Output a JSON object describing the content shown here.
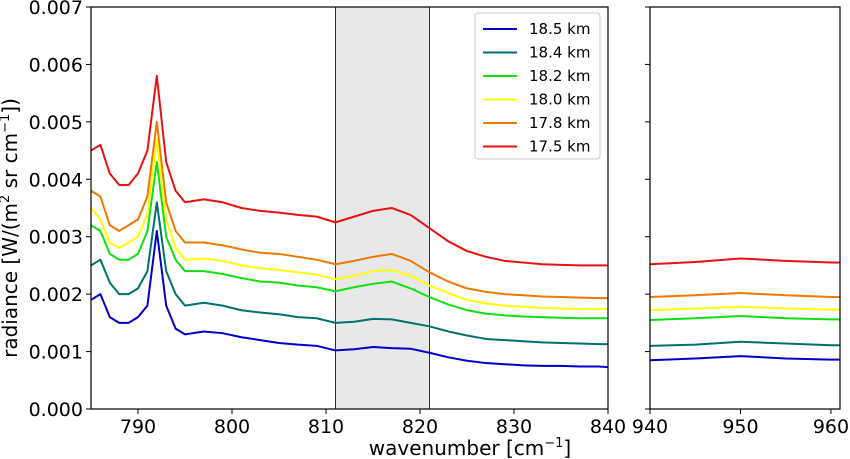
{
  "chart_data": {
    "type": "line",
    "xlabel": "wavenumber [cm",
    "xlabel_sup": "−1",
    "xlabel_end": "]",
    "ylabel": "radiance [W/(m",
    "ylabel_sup1": "2",
    "ylabel_mid": " sr cm",
    "ylabel_sup2": "−1",
    "ylabel_end": "])",
    "ylim": [
      0,
      0.007
    ],
    "yticks": [
      "0.000",
      "0.001",
      "0.002",
      "0.003",
      "0.004",
      "0.005",
      "0.006",
      "0.007"
    ],
    "panels": [
      {
        "xlim": [
          785,
          840
        ],
        "xticks": [
          "790",
          "800",
          "810",
          "820",
          "830",
          "840"
        ],
        "ytick_labels_shown": true
      },
      {
        "xlim": [
          940,
          961
        ],
        "xticks": [
          "940",
          "950",
          "960"
        ],
        "ytick_labels_shown": false
      }
    ],
    "shaded_region": {
      "x0": 811,
      "x1": 821,
      "color": "#e8e8e8"
    },
    "legend": {
      "placement": "top-right of left panel"
    },
    "grid": false,
    "series": [
      {
        "name": "18.5 km",
        "color": "#0000c8",
        "offset": 0.0,
        "left": [
          [
            785,
            0.0019
          ],
          [
            786,
            0.002
          ],
          [
            787,
            0.0016
          ],
          [
            788,
            0.0015
          ],
          [
            789,
            0.0015
          ],
          [
            790,
            0.0016
          ],
          [
            791,
            0.0018
          ],
          [
            792,
            0.0031
          ],
          [
            793,
            0.0018
          ],
          [
            794,
            0.0014
          ],
          [
            795,
            0.0013
          ],
          [
            797,
            0.00135
          ],
          [
            799,
            0.00132
          ],
          [
            801,
            0.00125
          ],
          [
            803,
            0.0012
          ],
          [
            805,
            0.00115
          ],
          [
            807,
            0.00112
          ],
          [
            809,
            0.0011
          ],
          [
            811,
            0.00102
          ],
          [
            813,
            0.00104
          ],
          [
            815,
            0.00108
          ],
          [
            817,
            0.00106
          ],
          [
            819,
            0.00105
          ],
          [
            821,
            0.00098
          ],
          [
            823,
            0.0009
          ],
          [
            825,
            0.00084
          ],
          [
            827,
            0.0008
          ],
          [
            829,
            0.00078
          ],
          [
            831,
            0.00076
          ],
          [
            833,
            0.00075
          ],
          [
            835,
            0.00075
          ],
          [
            837,
            0.00074
          ],
          [
            839,
            0.00074
          ],
          [
            840,
            0.00073
          ]
        ],
        "right": [
          [
            940,
            0.00085
          ],
          [
            945,
            0.00088
          ],
          [
            950,
            0.00092
          ],
          [
            955,
            0.00088
          ],
          [
            960,
            0.00086
          ],
          [
            961,
            0.00086
          ]
        ]
      },
      {
        "name": "18.4 km",
        "color": "#007070",
        "offset": 0.0,
        "left": [
          [
            785,
            0.0025
          ],
          [
            786,
            0.0026
          ],
          [
            787,
            0.0022
          ],
          [
            788,
            0.002
          ],
          [
            789,
            0.002
          ],
          [
            790,
            0.0021
          ],
          [
            791,
            0.0024
          ],
          [
            792,
            0.0036
          ],
          [
            793,
            0.0024
          ],
          [
            794,
            0.002
          ],
          [
            795,
            0.0018
          ],
          [
            797,
            0.00185
          ],
          [
            799,
            0.0018
          ],
          [
            801,
            0.00172
          ],
          [
            803,
            0.00168
          ],
          [
            805,
            0.00165
          ],
          [
            807,
            0.0016
          ],
          [
            809,
            0.00158
          ],
          [
            811,
            0.0015
          ],
          [
            813,
            0.00152
          ],
          [
            815,
            0.00157
          ],
          [
            817,
            0.00156
          ],
          [
            819,
            0.0015
          ],
          [
            821,
            0.00144
          ],
          [
            823,
            0.00135
          ],
          [
            825,
            0.00128
          ],
          [
            827,
            0.00122
          ],
          [
            829,
            0.0012
          ],
          [
            831,
            0.00118
          ],
          [
            833,
            0.00116
          ],
          [
            835,
            0.00115
          ],
          [
            837,
            0.00114
          ],
          [
            839,
            0.00113
          ],
          [
            840,
            0.00113
          ]
        ],
        "right": [
          [
            940,
            0.0011
          ],
          [
            945,
            0.00112
          ],
          [
            950,
            0.00117
          ],
          [
            955,
            0.00114
          ],
          [
            960,
            0.00111
          ],
          [
            961,
            0.00111
          ]
        ]
      },
      {
        "name": "18.2 km",
        "color": "#10e010",
        "offset": 0.0,
        "left": [
          [
            785,
            0.0032
          ],
          [
            786,
            0.0031
          ],
          [
            787,
            0.0027
          ],
          [
            788,
            0.0026
          ],
          [
            789,
            0.0026
          ],
          [
            790,
            0.0027
          ],
          [
            791,
            0.0031
          ],
          [
            792,
            0.0043
          ],
          [
            793,
            0.003
          ],
          [
            794,
            0.0026
          ],
          [
            795,
            0.0024
          ],
          [
            797,
            0.0024
          ],
          [
            799,
            0.00235
          ],
          [
            801,
            0.00228
          ],
          [
            803,
            0.00222
          ],
          [
            805,
            0.0022
          ],
          [
            807,
            0.00215
          ],
          [
            809,
            0.00212
          ],
          [
            811,
            0.00205
          ],
          [
            813,
            0.00212
          ],
          [
            815,
            0.00218
          ],
          [
            817,
            0.00222
          ],
          [
            819,
            0.0021
          ],
          [
            821,
            0.00195
          ],
          [
            823,
            0.00182
          ],
          [
            825,
            0.00172
          ],
          [
            827,
            0.00166
          ],
          [
            829,
            0.00163
          ],
          [
            831,
            0.00161
          ],
          [
            833,
            0.0016
          ],
          [
            835,
            0.00159
          ],
          [
            837,
            0.00158
          ],
          [
            839,
            0.00158
          ],
          [
            840,
            0.00158
          ]
        ],
        "right": [
          [
            940,
            0.00155
          ],
          [
            945,
            0.00158
          ],
          [
            950,
            0.00162
          ],
          [
            955,
            0.00158
          ],
          [
            960,
            0.00156
          ],
          [
            961,
            0.00156
          ]
        ]
      },
      {
        "name": "18.0 km",
        "color": "#ffff00",
        "offset": 0.0,
        "left": [
          [
            785,
            0.0035
          ],
          [
            786,
            0.0033
          ],
          [
            787,
            0.0029
          ],
          [
            788,
            0.0028
          ],
          [
            789,
            0.0029
          ],
          [
            790,
            0.003
          ],
          [
            791,
            0.0034
          ],
          [
            792,
            0.0047
          ],
          [
            793,
            0.0033
          ],
          [
            794,
            0.0028
          ],
          [
            795,
            0.0026
          ],
          [
            797,
            0.00262
          ],
          [
            799,
            0.00258
          ],
          [
            801,
            0.0025
          ],
          [
            803,
            0.00245
          ],
          [
            805,
            0.00242
          ],
          [
            807,
            0.00238
          ],
          [
            809,
            0.00234
          ],
          [
            811,
            0.00226
          ],
          [
            813,
            0.00232
          ],
          [
            815,
            0.0024
          ],
          [
            817,
            0.00242
          ],
          [
            819,
            0.00232
          ],
          [
            821,
            0.00215
          ],
          [
            823,
            0.00202
          ],
          [
            825,
            0.0019
          ],
          [
            827,
            0.00184
          ],
          [
            829,
            0.0018
          ],
          [
            831,
            0.00178
          ],
          [
            833,
            0.00176
          ],
          [
            835,
            0.00175
          ],
          [
            837,
            0.00174
          ],
          [
            839,
            0.00174
          ],
          [
            840,
            0.00174
          ]
        ],
        "right": [
          [
            940,
            0.00172
          ],
          [
            945,
            0.00175
          ],
          [
            950,
            0.00178
          ],
          [
            955,
            0.00175
          ],
          [
            960,
            0.00173
          ],
          [
            961,
            0.00173
          ]
        ]
      },
      {
        "name": "17.8 km",
        "color": "#f07800",
        "offset": 0.0,
        "left": [
          [
            785,
            0.0038
          ],
          [
            786,
            0.0037
          ],
          [
            787,
            0.0032
          ],
          [
            788,
            0.0031
          ],
          [
            789,
            0.0032
          ],
          [
            790,
            0.0033
          ],
          [
            791,
            0.0037
          ],
          [
            792,
            0.005
          ],
          [
            793,
            0.0036
          ],
          [
            794,
            0.0031
          ],
          [
            795,
            0.0029
          ],
          [
            797,
            0.0029
          ],
          [
            799,
            0.00285
          ],
          [
            801,
            0.00278
          ],
          [
            803,
            0.00272
          ],
          [
            805,
            0.0027
          ],
          [
            807,
            0.00265
          ],
          [
            809,
            0.0026
          ],
          [
            811,
            0.00252
          ],
          [
            813,
            0.00258
          ],
          [
            815,
            0.00265
          ],
          [
            817,
            0.0027
          ],
          [
            819,
            0.00258
          ],
          [
            821,
            0.00238
          ],
          [
            823,
            0.00222
          ],
          [
            825,
            0.0021
          ],
          [
            827,
            0.00204
          ],
          [
            829,
            0.002
          ],
          [
            831,
            0.00198
          ],
          [
            833,
            0.00196
          ],
          [
            835,
            0.00195
          ],
          [
            837,
            0.00194
          ],
          [
            839,
            0.00193
          ],
          [
            840,
            0.00193
          ]
        ],
        "right": [
          [
            940,
            0.00195
          ],
          [
            945,
            0.00198
          ],
          [
            950,
            0.00202
          ],
          [
            955,
            0.00198
          ],
          [
            960,
            0.00195
          ],
          [
            961,
            0.00195
          ]
        ]
      },
      {
        "name": "17.5 km",
        "color": "#e81010",
        "offset": 0.0,
        "left": [
          [
            785,
            0.0045
          ],
          [
            786,
            0.0046
          ],
          [
            787,
            0.0041
          ],
          [
            788,
            0.0039
          ],
          [
            789,
            0.0039
          ],
          [
            790,
            0.0041
          ],
          [
            791,
            0.0045
          ],
          [
            792,
            0.0058
          ],
          [
            793,
            0.0043
          ],
          [
            794,
            0.0038
          ],
          [
            795,
            0.0036
          ],
          [
            797,
            0.00365
          ],
          [
            799,
            0.0036
          ],
          [
            801,
            0.0035
          ],
          [
            803,
            0.00345
          ],
          [
            805,
            0.00342
          ],
          [
            807,
            0.00338
          ],
          [
            809,
            0.00335
          ],
          [
            811,
            0.00325
          ],
          [
            813,
            0.00335
          ],
          [
            815,
            0.00345
          ],
          [
            817,
            0.0035
          ],
          [
            819,
            0.00338
          ],
          [
            821,
            0.00315
          ],
          [
            823,
            0.00292
          ],
          [
            825,
            0.00275
          ],
          [
            827,
            0.00265
          ],
          [
            829,
            0.00258
          ],
          [
            831,
            0.00255
          ],
          [
            833,
            0.00252
          ],
          [
            835,
            0.00251
          ],
          [
            837,
            0.0025
          ],
          [
            839,
            0.0025
          ],
          [
            840,
            0.0025
          ]
        ],
        "right": [
          [
            940,
            0.00252
          ],
          [
            945,
            0.00256
          ],
          [
            950,
            0.00262
          ],
          [
            955,
            0.00258
          ],
          [
            960,
            0.00255
          ],
          [
            961,
            0.00255
          ]
        ]
      }
    ]
  }
}
